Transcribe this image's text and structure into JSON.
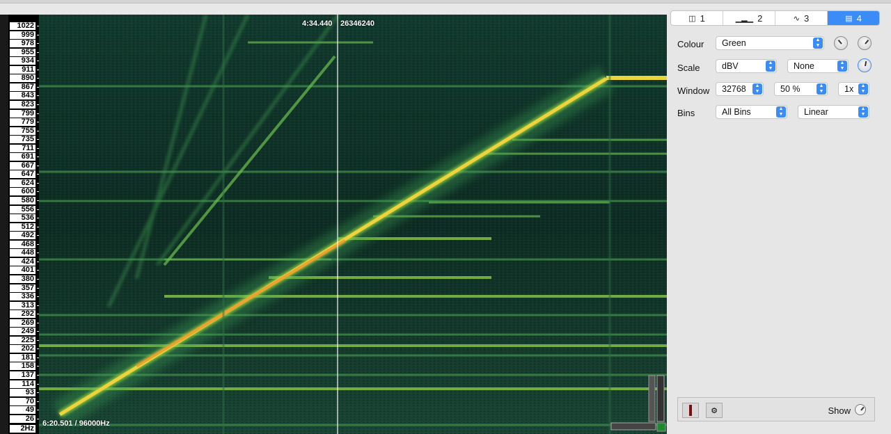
{
  "scale": {
    "unit_label": "2Hz",
    "ticks": [
      "1022",
      "999",
      "978",
      "955",
      "934",
      "911",
      "890",
      "867",
      "843",
      "823",
      "799",
      "779",
      "755",
      "735",
      "711",
      "691",
      "667",
      "647",
      "624",
      "600",
      "580",
      "556",
      "536",
      "512",
      "492",
      "468",
      "448",
      "424",
      "401",
      "380",
      "357",
      "336",
      "313",
      "292",
      "269",
      "249",
      "225",
      "202",
      "181",
      "158",
      "137",
      "114",
      "93",
      "70",
      "49",
      "26"
    ]
  },
  "overlay": {
    "cursor_time": "4:34.440",
    "cursor_frame": "26346240",
    "position_info": "6:20.501 / 96000Hz"
  },
  "tabs": [
    {
      "label": "1",
      "icon": "panes-icon"
    },
    {
      "label": "2",
      "icon": "histogram-icon"
    },
    {
      "label": "3",
      "icon": "waveform-icon"
    },
    {
      "label": "4",
      "icon": "spectrogram-icon"
    }
  ],
  "active_tab": "4",
  "controls": {
    "colour_label": "Colour",
    "colour_value": "Green",
    "scale_label": "Scale",
    "scale_value": "dBV",
    "scale_norm_value": "None",
    "window_label": "Window",
    "window_size": "32768",
    "window_overlap": "50 %",
    "window_oversample": "1x",
    "bins_label": "Bins",
    "bins_value": "All Bins",
    "bins_display": "Linear"
  },
  "bottom": {
    "show_label": "Show"
  },
  "colors": {
    "accent": "#3b8cf6",
    "spectrum_bg": "#0f2a22",
    "ridge": "#f0d23a"
  }
}
